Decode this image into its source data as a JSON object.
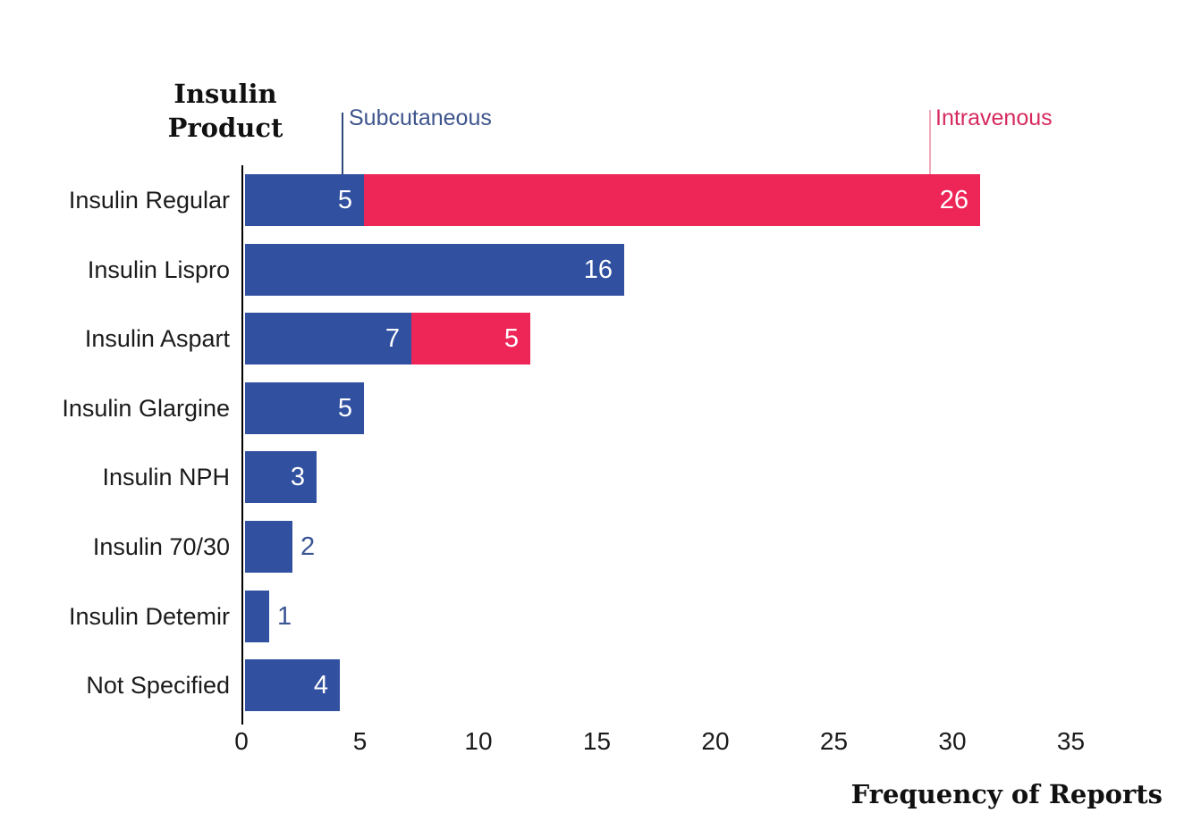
{
  "chart_data": {
    "type": "bar",
    "orientation": "horizontal",
    "stacked": true,
    "y_axis_title": "Insulin Product",
    "x_axis_title": "Frequency of Reports",
    "categories": [
      "Insulin Regular",
      "Insulin Lispro",
      "Insulin Aspart",
      "Insulin Glargine",
      "Insulin NPH",
      "Insulin 70/30",
      "Insulin Detemir",
      "Not Specified"
    ],
    "series": [
      {
        "name": "Subcutaneous",
        "color": "#31509F",
        "values": [
          5,
          16,
          7,
          5,
          3,
          2,
          1,
          4
        ]
      },
      {
        "name": "Intravenous",
        "color": "#EE2658",
        "values": [
          26,
          0,
          5,
          0,
          0,
          0,
          0,
          0
        ]
      }
    ],
    "x_ticks": [
      0,
      5,
      10,
      15,
      20,
      25,
      30,
      35
    ],
    "xlim": [
      0,
      37
    ],
    "grid": false,
    "legend_position": "top-callouts"
  },
  "colors": {
    "background": "#FFFFFF",
    "bar_blue": "#31509F",
    "bar_pink": "#EE2658",
    "legend_blue_text": "#3E548C",
    "legend_pink_text": "#D62A5E",
    "leader_line_blue": "#2E4A7C",
    "leader_line_pink": "#F2A9BC",
    "axis_line": "#000000",
    "axis_text": "#1B1B1B",
    "value_text_inside": "#FFFFFF",
    "value_text_outside": "#3A5695"
  }
}
